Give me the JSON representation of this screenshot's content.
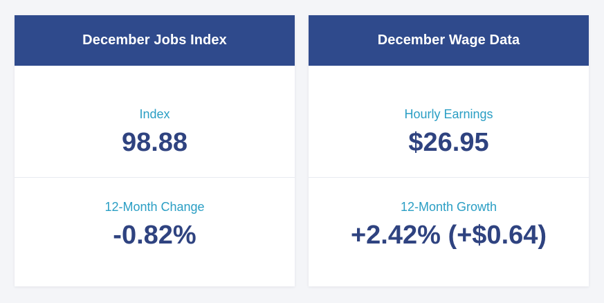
{
  "cards": [
    {
      "title": "December Jobs Index",
      "metrics": [
        {
          "label": "Index",
          "value": "98.88"
        },
        {
          "label": "12-Month Change",
          "value": "-0.82%"
        }
      ]
    },
    {
      "title": "December Wage Data",
      "metrics": [
        {
          "label": "Hourly Earnings",
          "value": "$26.95"
        },
        {
          "label": "12-Month Growth",
          "value": "+2.42% (+$0.64)"
        }
      ]
    }
  ],
  "colors": {
    "header_bg": "#2f4a8c",
    "label": "#2a9ec4",
    "value": "#2f4380"
  }
}
